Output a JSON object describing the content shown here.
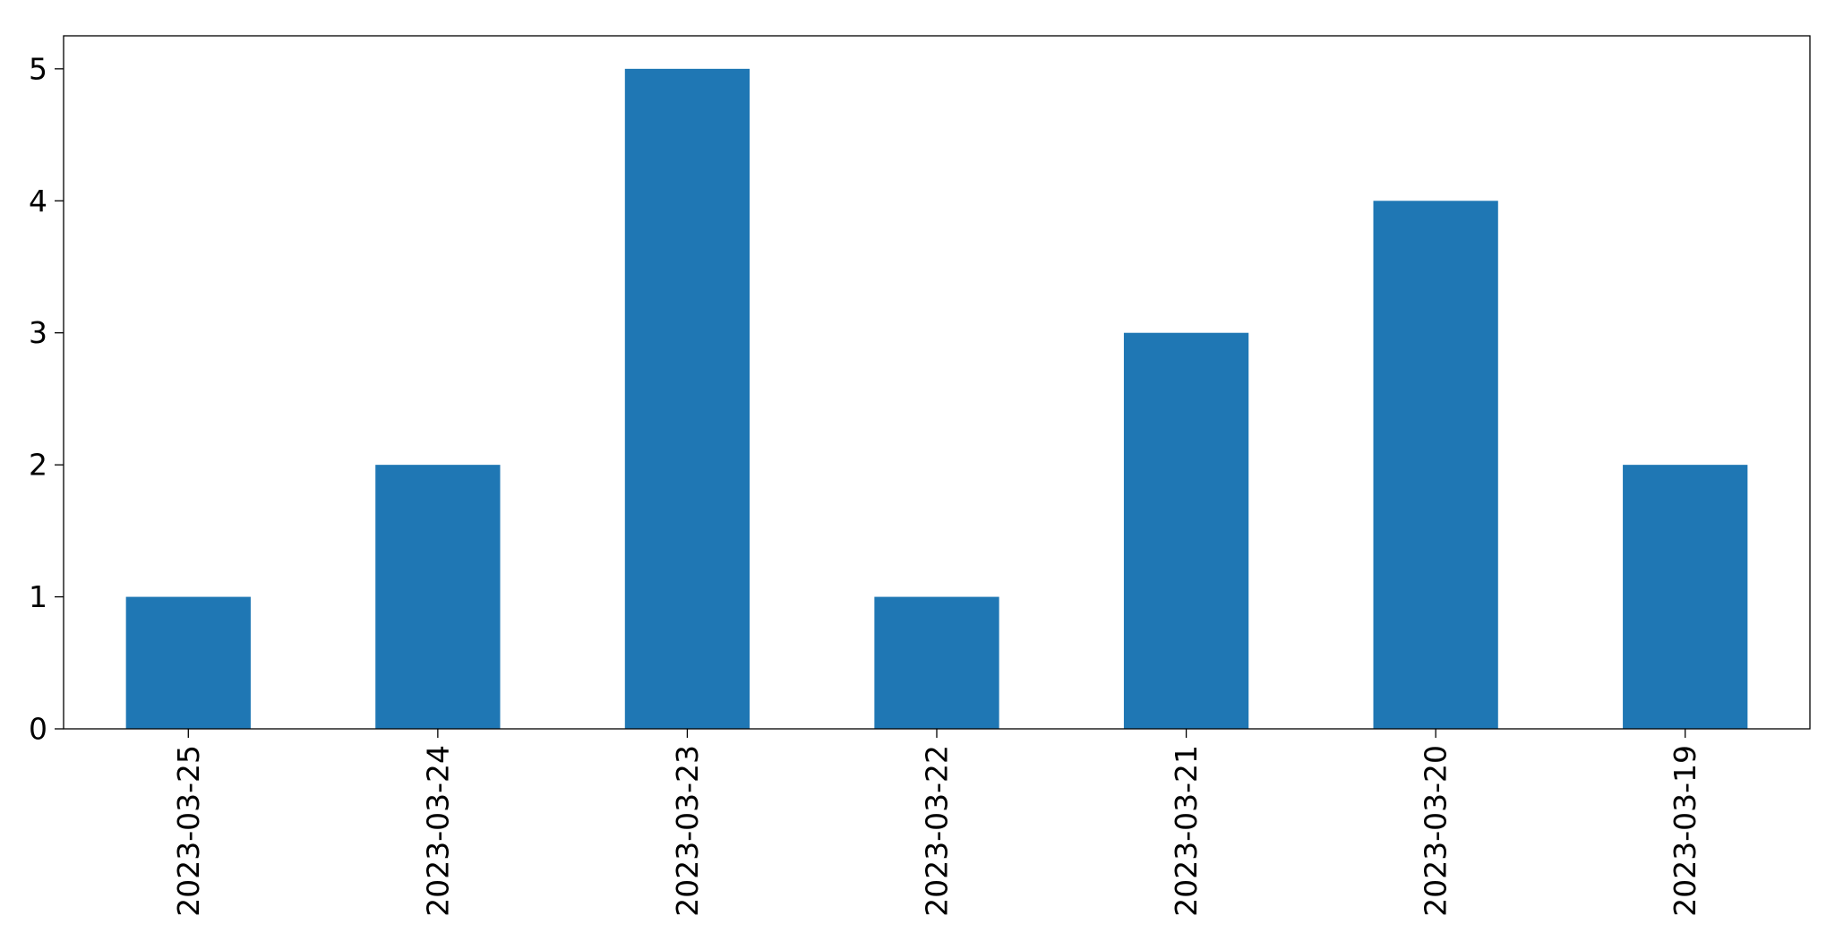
{
  "chart_data": {
    "type": "bar",
    "categories": [
      "2023-03-25",
      "2023-03-24",
      "2023-03-23",
      "2023-03-22",
      "2023-03-21",
      "2023-03-20",
      "2023-03-19"
    ],
    "values": [
      1,
      2,
      5,
      1,
      3,
      4,
      2
    ],
    "title": "",
    "xlabel": "",
    "ylabel": "",
    "ylim": [
      0,
      5.25
    ],
    "yticks": [
      0,
      1,
      2,
      3,
      4,
      5
    ],
    "grid": false,
    "legend": "none",
    "bar_color": "#1f77b4"
  }
}
